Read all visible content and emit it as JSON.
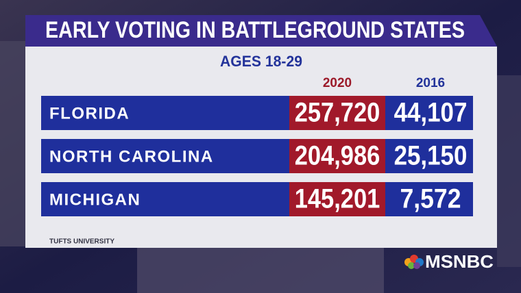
{
  "header": {
    "title": "EARLY VOTING IN BATTLEGROUND STATES",
    "subtitle": "AGES 18-29"
  },
  "table": {
    "columns": [
      "2020",
      "2016"
    ],
    "rows": [
      [
        "FLORIDA",
        "257,720",
        "44,107"
      ],
      [
        "NORTH CAROLINA",
        "204,986",
        "25,150"
      ],
      [
        "MICHIGAN",
        "145,201",
        "7,572"
      ]
    ]
  },
  "source": "TUFTS UNIVERSITY",
  "logo": "MSNBC"
}
